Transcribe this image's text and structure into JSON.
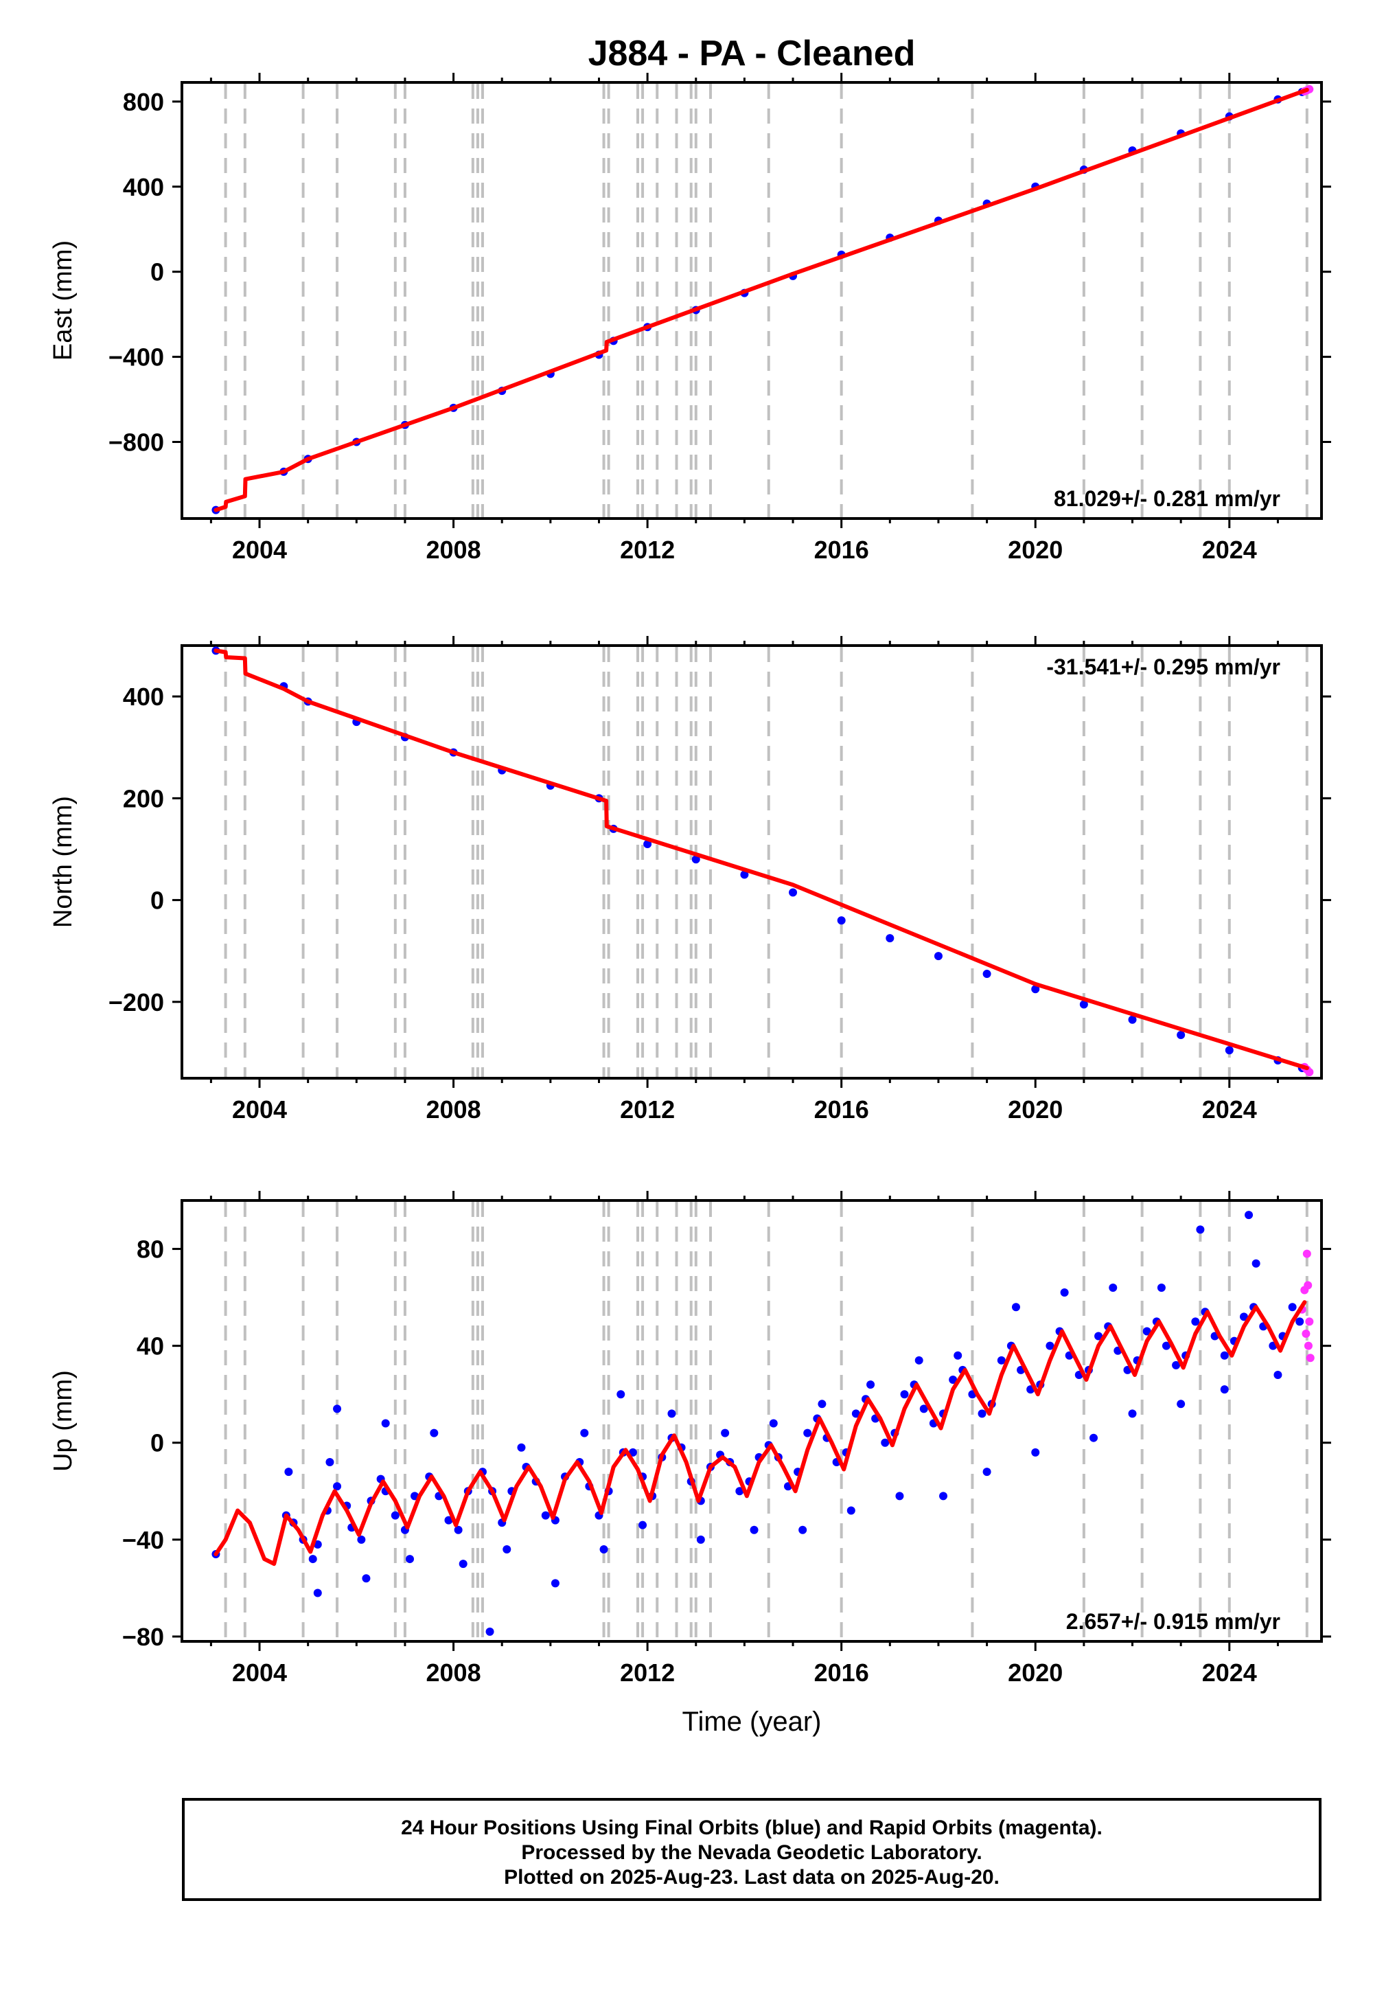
{
  "title": "J884  - PA - Cleaned",
  "xlabel": "Time (year)",
  "footer": {
    "line1": "24 Hour Positions Using Final Orbits (blue) and Rapid Orbits (magenta).",
    "line2": "Processed by the Nevada Geodetic Laboratory.",
    "line3": "Plotted on 2025-Aug-23. Last data on 2025-Aug-20."
  },
  "colors": {
    "final_orbits": "#0000ff",
    "rapid_orbits": "#ff33ff",
    "model": "#ff0000",
    "steps": "#c0c0c0"
  },
  "chart_data": [
    {
      "type": "scatter",
      "name": "East",
      "ylabel": "East (mm)",
      "xlim": [
        2002.4,
        2025.9
      ],
      "ylim": [
        -1160,
        890
      ],
      "xticks": [
        2004,
        2008,
        2012,
        2016,
        2020,
        2024
      ],
      "yticks": [
        -800,
        -400,
        0,
        400,
        800
      ],
      "rate_text": "81.029+/- 0.281 mm/yr",
      "rate_mm_per_yr": 81.029,
      "grid": false,
      "step_epochs": [
        2003.3,
        2003.7,
        2004.9,
        2005.6,
        2006.8,
        2007.0,
        2008.4,
        2008.5,
        2008.6,
        2011.1,
        2011.2,
        2011.8,
        2011.9,
        2012.2,
        2012.6,
        2012.9,
        2013.0,
        2013.3,
        2014.5,
        2016.0,
        2018.7,
        2021.0,
        2022.2,
        2023.4,
        2024.0,
        2025.6
      ],
      "model_line": {
        "x": [
          2003.1,
          2003.3,
          2003.31,
          2003.7,
          2003.71,
          2004.5,
          2005.0,
          2008.0,
          2011.15,
          2011.16,
          2015.0,
          2020.0,
          2025.6
        ],
        "y": [
          -1120,
          -1105,
          -1082,
          -1055,
          -975,
          -940,
          -880,
          -640,
          -370,
          -330,
          -10,
          390,
          855
        ]
      },
      "final_points": {
        "x": [
          2003.1,
          2004.5,
          2005.0,
          2006.0,
          2007.0,
          2008.0,
          2009.0,
          2010.0,
          2011.0,
          2011.3,
          2012.0,
          2013.0,
          2014.0,
          2015.0,
          2016.0,
          2017.0,
          2018.0,
          2019.0,
          2020.0,
          2021.0,
          2022.0,
          2023.0,
          2024.0,
          2025.0,
          2025.5
        ],
        "y": [
          -1120,
          -940,
          -880,
          -800,
          -720,
          -640,
          -560,
          -480,
          -390,
          -325,
          -260,
          -180,
          -100,
          -20,
          80,
          160,
          240,
          320,
          400,
          480,
          570,
          650,
          730,
          810,
          845
        ]
      },
      "rapid_points": {
        "x": [
          2025.55,
          2025.6,
          2025.65
        ],
        "y": [
          848,
          853,
          858
        ]
      }
    },
    {
      "type": "scatter",
      "name": "North",
      "ylabel": "North (mm)",
      "xlim": [
        2002.4,
        2025.9
      ],
      "ylim": [
        -350,
        500
      ],
      "xticks": [
        2004,
        2008,
        2012,
        2016,
        2020,
        2024
      ],
      "yticks": [
        -200,
        0,
        200,
        400
      ],
      "rate_text": "-31.541+/- 0.295 mm/yr",
      "rate_mm_per_yr": -31.541,
      "grid": false,
      "step_epochs": [
        2003.3,
        2003.7,
        2004.9,
        2005.6,
        2006.8,
        2007.0,
        2008.4,
        2008.5,
        2008.6,
        2011.1,
        2011.2,
        2011.8,
        2011.9,
        2012.2,
        2012.6,
        2012.9,
        2013.0,
        2013.3,
        2014.5,
        2016.0,
        2018.7,
        2021.0,
        2022.2,
        2023.4,
        2024.0,
        2025.6
      ],
      "model_line": {
        "x": [
          2003.1,
          2003.3,
          2003.31,
          2003.7,
          2003.71,
          2004.5,
          2005.0,
          2008.0,
          2011.15,
          2011.16,
          2015.0,
          2020.0,
          2025.6
        ],
        "y": [
          490,
          487,
          477,
          475,
          445,
          415,
          390,
          290,
          195,
          145,
          30,
          -165,
          -330
        ]
      },
      "final_points": {
        "x": [
          2003.1,
          2004.5,
          2005.0,
          2006.0,
          2007.0,
          2008.0,
          2009.0,
          2010.0,
          2011.0,
          2011.3,
          2012.0,
          2013.0,
          2014.0,
          2015.0,
          2016.0,
          2017.0,
          2018.0,
          2019.0,
          2020.0,
          2021.0,
          2022.0,
          2023.0,
          2024.0,
          2025.0,
          2025.5
        ],
        "y": [
          490,
          420,
          390,
          350,
          320,
          290,
          255,
          225,
          200,
          140,
          110,
          80,
          50,
          15,
          -40,
          -75,
          -110,
          -145,
          -175,
          -205,
          -235,
          -265,
          -295,
          -315,
          -330
        ]
      },
      "rapid_points": {
        "x": [
          2025.55,
          2025.6,
          2025.65
        ],
        "y": [
          -328,
          -333,
          -338
        ]
      }
    },
    {
      "type": "scatter",
      "name": "Up",
      "ylabel": "Up (mm)",
      "xlim": [
        2002.4,
        2025.9
      ],
      "ylim": [
        -82,
        100
      ],
      "xticks": [
        2004,
        2008,
        2012,
        2016,
        2020,
        2024
      ],
      "yticks": [
        -80,
        -40,
        0,
        40,
        80
      ],
      "rate_text": "2.657+/- 0.915 mm/yr",
      "rate_mm_per_yr": 2.657,
      "grid": false,
      "step_epochs": [
        2003.3,
        2003.7,
        2004.9,
        2005.6,
        2006.8,
        2007.0,
        2008.4,
        2008.5,
        2008.6,
        2011.1,
        2011.2,
        2011.8,
        2011.9,
        2012.2,
        2012.6,
        2012.9,
        2013.0,
        2013.3,
        2014.5,
        2016.0,
        2018.7,
        2021.0,
        2022.2,
        2023.4,
        2024.0,
        2025.6
      ],
      "model_line": {
        "x": [
          2003.1,
          2003.3,
          2003.55,
          2003.8,
          2004.1,
          2004.3,
          2004.55,
          2004.8,
          2005.05,
          2005.3,
          2005.55,
          2005.8,
          2006.05,
          2006.3,
          2006.55,
          2006.8,
          2007.05,
          2007.3,
          2007.55,
          2007.8,
          2008.05,
          2008.3,
          2008.55,
          2008.8,
          2009.05,
          2009.3,
          2009.55,
          2009.8,
          2010.05,
          2010.3,
          2010.55,
          2010.8,
          2011.05,
          2011.3,
          2011.55,
          2011.8,
          2012.05,
          2012.3,
          2012.55,
          2012.8,
          2013.05,
          2013.3,
          2013.55,
          2013.8,
          2014.05,
          2014.3,
          2014.55,
          2014.8,
          2015.05,
          2015.3,
          2015.55,
          2015.8,
          2016.05,
          2016.3,
          2016.55,
          2016.8,
          2017.05,
          2017.3,
          2017.55,
          2017.8,
          2018.05,
          2018.3,
          2018.55,
          2018.8,
          2019.05,
          2019.3,
          2019.55,
          2019.8,
          2020.05,
          2020.3,
          2020.55,
          2020.8,
          2021.05,
          2021.3,
          2021.55,
          2021.8,
          2022.05,
          2022.3,
          2022.55,
          2022.8,
          2023.05,
          2023.3,
          2023.55,
          2023.8,
          2024.05,
          2024.3,
          2024.55,
          2024.8,
          2025.05,
          2025.3,
          2025.55
        ],
        "y": [
          -46,
          -40,
          -28,
          -33,
          -48,
          -50,
          -30,
          -36,
          -45,
          -30,
          -20,
          -28,
          -38,
          -25,
          -16,
          -24,
          -35,
          -22,
          -14,
          -22,
          -34,
          -20,
          -12,
          -20,
          -32,
          -18,
          -10,
          -18,
          -31,
          -15,
          -8,
          -16,
          -29,
          -10,
          -3,
          -11,
          -24,
          -5,
          3,
          -8,
          -24,
          -10,
          -6,
          -10,
          -22,
          -8,
          -1,
          -10,
          -20,
          -3,
          10,
          0,
          -11,
          7,
          18,
          10,
          -1,
          14,
          24,
          15,
          6,
          22,
          30,
          20,
          12,
          28,
          40,
          30,
          20,
          34,
          46,
          36,
          26,
          40,
          48,
          38,
          28,
          42,
          50,
          41,
          31,
          45,
          54,
          44,
          36,
          48,
          56,
          48,
          38,
          50,
          58
        ]
      },
      "final_points": {
        "x": [
          2003.1,
          2004.55,
          2004.7,
          2004.9,
          2005.1,
          2005.2,
          2005.4,
          2005.6,
          2005.8,
          2005.9,
          2006.1,
          2006.3,
          2006.5,
          2006.6,
          2006.8,
          2007.0,
          2007.2,
          2007.5,
          2007.7,
          2007.9,
          2008.1,
          2008.3,
          2008.6,
          2008.8,
          2009.0,
          2009.2,
          2009.5,
          2009.7,
          2009.9,
          2010.1,
          2010.3,
          2010.6,
          2010.8,
          2011.0,
          2011.2,
          2011.5,
          2011.7,
          2011.9,
          2012.1,
          2012.3,
          2012.5,
          2012.7,
          2012.9,
          2013.1,
          2013.3,
          2013.5,
          2013.7,
          2013.9,
          2014.1,
          2014.3,
          2014.5,
          2014.7,
          2014.9,
          2015.1,
          2015.3,
          2015.5,
          2015.7,
          2015.9,
          2016.1,
          2016.3,
          2016.5,
          2016.7,
          2016.9,
          2017.1,
          2017.3,
          2017.5,
          2017.7,
          2017.9,
          2018.1,
          2018.3,
          2018.5,
          2018.7,
          2018.9,
          2019.1,
          2019.3,
          2019.5,
          2019.7,
          2019.9,
          2020.1,
          2020.3,
          2020.5,
          2020.7,
          2020.9,
          2021.1,
          2021.3,
          2021.5,
          2021.7,
          2021.9,
          2022.1,
          2022.3,
          2022.5,
          2022.7,
          2022.9,
          2023.1,
          2023.3,
          2023.5,
          2023.7,
          2023.9,
          2024.1,
          2024.3,
          2024.5,
          2024.7,
          2024.9,
          2025.1,
          2025.3,
          2025.45,
          2004.6,
          2005.2,
          2005.45,
          2005.6,
          2006.2,
          2006.6,
          2007.1,
          2007.6,
          2008.2,
          2008.75,
          2009.1,
          2009.4,
          2010.1,
          2010.7,
          2011.1,
          2011.45,
          2011.9,
          2012.5,
          2013.1,
          2013.6,
          2014.2,
          2014.6,
          2015.2,
          2015.6,
          2016.2,
          2016.6,
          2017.2,
          2017.6,
          2018.1,
          2018.4,
          2019.0,
          2019.6,
          2020.0,
          2020.6,
          2021.2,
          2021.6,
          2022.0,
          2022.6,
          2023.0,
          2023.4,
          2023.9,
          2024.4,
          2024.55,
          2025.0
        ],
        "y": [
          -46,
          -30,
          -33,
          -40,
          -48,
          -42,
          -28,
          -18,
          -26,
          -35,
          -40,
          -24,
          -15,
          -20,
          -30,
          -36,
          -22,
          -14,
          -22,
          -32,
          -36,
          -20,
          -12,
          -20,
          -33,
          -20,
          -10,
          -16,
          -30,
          -32,
          -14,
          -8,
          -18,
          -30,
          -20,
          -4,
          -4,
          -14,
          -22,
          -6,
          2,
          -2,
          -16,
          -24,
          -10,
          -5,
          -8,
          -20,
          -16,
          -6,
          -1,
          -6,
          -18,
          -12,
          4,
          10,
          2,
          -8,
          -4,
          12,
          18,
          10,
          0,
          4,
          20,
          24,
          14,
          8,
          12,
          26,
          30,
          20,
          12,
          16,
          34,
          40,
          30,
          22,
          24,
          40,
          46,
          36,
          28,
          30,
          44,
          48,
          38,
          30,
          34,
          46,
          50,
          40,
          32,
          36,
          50,
          54,
          44,
          36,
          42,
          52,
          56,
          48,
          40,
          44,
          56,
          50,
          -12,
          -62,
          -8,
          14,
          -56,
          8,
          -48,
          4,
          -50,
          -78,
          -44,
          -2,
          -58,
          4,
          -44,
          20,
          -34,
          12,
          -40,
          4,
          -36,
          8,
          -36,
          16,
          -28,
          24,
          -22,
          34,
          -22,
          36,
          -12,
          56,
          -4,
          62,
          2,
          64,
          12,
          64,
          16,
          88,
          22,
          94,
          74,
          28
        ]
      },
      "rapid_points": {
        "x": [
          2025.5,
          2025.55,
          2025.58,
          2025.6,
          2025.63,
          2025.65,
          2025.67,
          2025.62
        ],
        "y": [
          55,
          63,
          45,
          78,
          40,
          50,
          35,
          65
        ]
      }
    }
  ]
}
